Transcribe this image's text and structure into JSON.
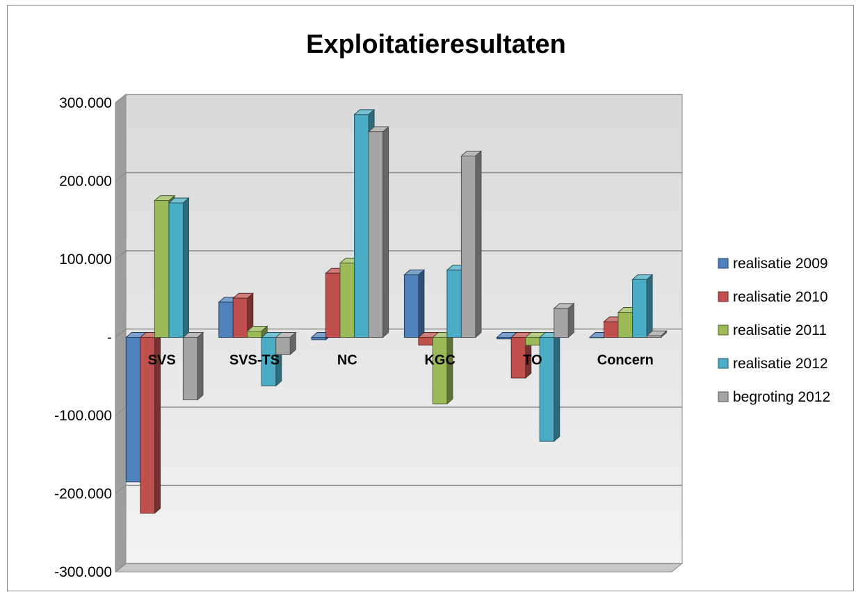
{
  "chart_data": {
    "type": "bar",
    "title": "Exploitatieresultaten",
    "xlabel": "",
    "ylabel": "",
    "categories": [
      "SVS",
      "SVS-TS",
      "NC",
      "KGC",
      "TO",
      "Concern"
    ],
    "series": [
      {
        "name": "realisatie 2009",
        "color": "#4f81bd",
        "values": [
          -185000,
          45000,
          -3000,
          80000,
          -2000,
          0
        ]
      },
      {
        "name": "realisatie 2010",
        "color": "#c0504d",
        "values": [
          -225000,
          50000,
          82000,
          -10000,
          -52000,
          20000
        ]
      },
      {
        "name": "realisatie 2011",
        "color": "#9bbb59",
        "values": [
          175000,
          8000,
          95000,
          -85000,
          -10000,
          32000
        ]
      },
      {
        "name": "realisatie 2012",
        "color": "#4bacc6",
        "values": [
          172000,
          -62000,
          285000,
          86000,
          -133000,
          74000
        ]
      },
      {
        "name": "begroting 2012",
        "color": "#a5a5a5",
        "values": [
          -80000,
          -22000,
          263000,
          232000,
          37000,
          2000
        ]
      }
    ],
    "ylim": [
      -300000,
      300000
    ],
    "y_ticks": [
      300000,
      200000,
      100000,
      0,
      -100000,
      -200000,
      -300000
    ],
    "y_tick_labels": [
      "300.000",
      "200.000",
      "100.000",
      "-",
      "-100.000",
      "-200.000",
      "-300.000"
    ],
    "grid": true,
    "legend_position": "right",
    "style": "3d-clustered-column"
  }
}
